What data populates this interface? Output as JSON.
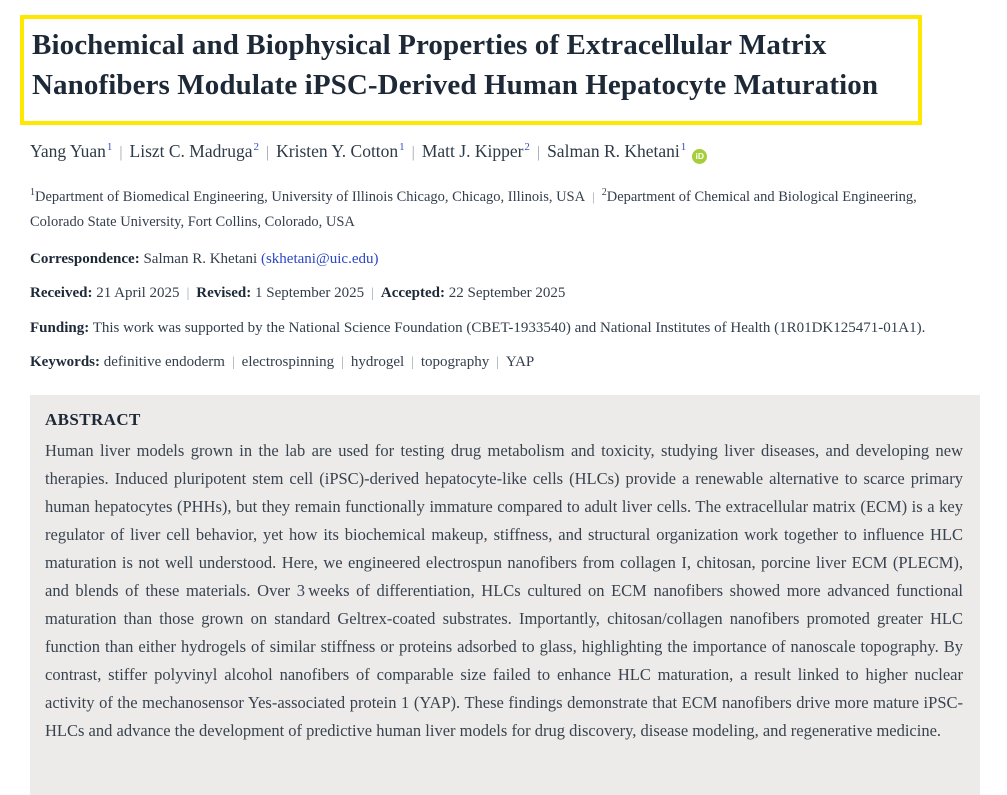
{
  "article": {
    "title": "Biochemical and Biophysical Properties of Extracellular Matrix Nanofibers Modulate iPSC-Derived Human Hepatocyte Maturation"
  },
  "authors": [
    {
      "name": "Yang Yuan",
      "sup": "1",
      "orcid": false
    },
    {
      "name": "Liszt C. Madruga",
      "sup": "2",
      "orcid": false
    },
    {
      "name": "Kristen Y. Cotton",
      "sup": "1",
      "orcid": false
    },
    {
      "name": "Matt J. Kipper",
      "sup": "2",
      "orcid": false
    },
    {
      "name": "Salman R. Khetani",
      "sup": "1",
      "orcid": true
    }
  ],
  "orcid_icon_text": "iD",
  "affiliations": [
    {
      "sup": "1",
      "text": "Department of Biomedical Engineering, University of Illinois Chicago, Chicago, Illinois, USA"
    },
    {
      "sup": "2",
      "text": "Department of Chemical and Biological Engineering, Colorado State University, Fort Collins, Colorado, USA"
    }
  ],
  "correspondence": {
    "label": "Correspondence:",
    "name": "Salman R. Khetani",
    "email": "skhetani@uic.edu"
  },
  "dates": [
    {
      "label": "Received:",
      "value": "21 April 2025"
    },
    {
      "label": "Revised:",
      "value": "1 September 2025"
    },
    {
      "label": "Accepted:",
      "value": "22 September 2025"
    }
  ],
  "funding": {
    "label": "Funding:",
    "text": "This work was supported by the National Science Foundation (CBET-1933540) and National Institutes of Health (1R01DK125471-01A1)."
  },
  "keywords": {
    "label": "Keywords:",
    "items": [
      "definitive endoderm",
      "electrospinning",
      "hydrogel",
      "topography",
      "YAP"
    ]
  },
  "abstract": {
    "heading": "ABSTRACT",
    "text": "Human liver models grown in the lab are used for testing drug metabolism and toxicity, studying liver diseases, and developing new therapies. Induced pluripotent stem cell (iPSC)-derived hepatocyte-like cells (HLCs) provide a renewable alternative to scarce primary human hepatocytes (PHHs), but they remain functionally immature compared to adult liver cells. The extracellular matrix (ECM) is a key regulator of liver cell behavior, yet how its biochemical makeup, stiffness, and structural organization work together to influence HLC maturation is not well understood. Here, we engineered electrospun nanofibers from collagen I, chitosan, porcine liver ECM (PLECM), and blends of these materials. Over 3 weeks of differentiation, HLCs cultured on ECM nanofibers showed more advanced functional maturation than those grown on standard Geltrex-coated substrates. Importantly, chitosan/collagen nanofibers promoted greater HLC function than either hydrogels of similar stiffness or proteins adsorbed to glass, highlighting the importance of nanoscale topography. By contrast, stiffer polyvinyl alcohol nanofibers of comparable size failed to enhance HLC maturation, a result linked to higher nuclear activity of the mechanosensor Yes-associated protein 1 (YAP). These findings demonstrate that ECM nanofibers drive more mature iPSC-HLCs and advance the development of predictive human liver models for drug discovery, disease modeling, and regenerative medicine."
  },
  "colors": {
    "highlight_border": "#ffe800",
    "abstract_background": "#ecebe9",
    "link_blue": "#2b46c8",
    "author_sup_blue": "#3b4cc0",
    "orcid_green": "#a6ce39",
    "heading_ink": "#1d2937",
    "body_ink": "#333e4c"
  }
}
